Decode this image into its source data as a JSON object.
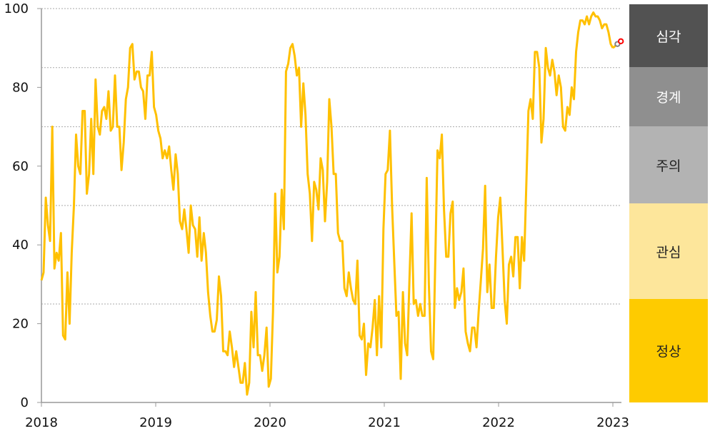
{
  "chart_data": {
    "type": "line",
    "title": "",
    "xlabel": "",
    "ylabel": "",
    "xlim": [
      2018,
      2023.075
    ],
    "ylim": [
      0,
      100
    ],
    "x_ticks": [
      "2018",
      "2019",
      "2020",
      "2021",
      "2022",
      "2023"
    ],
    "x_tick_values": [
      2018,
      2019,
      2020,
      2021,
      2022,
      2023
    ],
    "y_ticks": [
      "0",
      "20",
      "40",
      "60",
      "80",
      "100"
    ],
    "y_tick_values": [
      0,
      20,
      40,
      60,
      80,
      100
    ],
    "grid": "horizontal dotted at band thresholds",
    "thresholds": [
      25,
      50,
      70,
      85,
      100
    ],
    "series": [
      {
        "color": "#ffc000",
        "x_first": 2018.0,
        "x_last": 2023.0,
        "values": [
          31,
          33,
          52,
          45,
          41,
          70,
          34,
          38,
          36,
          43,
          17,
          16,
          33,
          20,
          38,
          50,
          68,
          60,
          58,
          74,
          74,
          53,
          58,
          72,
          58,
          82,
          70,
          68,
          74,
          75,
          72,
          79,
          69,
          70,
          83,
          70,
          70,
          59,
          66,
          77,
          80,
          90,
          91,
          82,
          84,
          84,
          80,
          79,
          72,
          83,
          83,
          89,
          75,
          73,
          69,
          67,
          62,
          64,
          62,
          65,
          59,
          54,
          63,
          58,
          46,
          44,
          49,
          44,
          38,
          50,
          45,
          44,
          37,
          47,
          36,
          43,
          38,
          28,
          22,
          18,
          18,
          21,
          32,
          27,
          13,
          13,
          12,
          18,
          14,
          9,
          13,
          9,
          5,
          5,
          10,
          2,
          5,
          23,
          14,
          28,
          12,
          12,
          8,
          12,
          19,
          4,
          6,
          23,
          53,
          33,
          37,
          54,
          44,
          84,
          86,
          90,
          91,
          88,
          83,
          85,
          70,
          81,
          73,
          58,
          53,
          41,
          56,
          54,
          49,
          62,
          59,
          46,
          56,
          77,
          70,
          58,
          58,
          43,
          41,
          41,
          29,
          27,
          33,
          29,
          26,
          25,
          36,
          17,
          16,
          20,
          7,
          15,
          14,
          19,
          26,
          12,
          27,
          14,
          44,
          58,
          59,
          69,
          50,
          36,
          22,
          23,
          6,
          28,
          15,
          12,
          31,
          48,
          25,
          26,
          22,
          25,
          22,
          22,
          57,
          30,
          13,
          11,
          37,
          64,
          62,
          68,
          49,
          37,
          37,
          48,
          51,
          24,
          29,
          26,
          28,
          34,
          18,
          15,
          13,
          19,
          19,
          14,
          23,
          31,
          39,
          55,
          28,
          35,
          24,
          24,
          37,
          47,
          52,
          39,
          26,
          20,
          35,
          37,
          32,
          42,
          42,
          29,
          42,
          36,
          55,
          74,
          77,
          72,
          89,
          89,
          85,
          66,
          72,
          90,
          85,
          83,
          87,
          84,
          78,
          83,
          80,
          70,
          69,
          75,
          73,
          80,
          77,
          89,
          94,
          97,
          97,
          96,
          98,
          96,
          98,
          99,
          98,
          98,
          97,
          95,
          96,
          96,
          94,
          91,
          90
        ]
      }
    ],
    "markers": [
      {
        "x": 2023.04,
        "y": 91.0,
        "color": "#808080"
      },
      {
        "x": 2023.07,
        "y": 91.7,
        "color": "#ff0000"
      }
    ],
    "legend": {
      "placement": "right",
      "bands": [
        {
          "label": "심각",
          "color": "#525252",
          "text_color": "#ffffff"
        },
        {
          "label": "경계",
          "color": "#8f8f8f",
          "text_color": "#ffffff"
        },
        {
          "label": "주의",
          "color": "#b3b3b3",
          "text_color": "#222222"
        },
        {
          "label": "관심",
          "color": "#fde69b",
          "text_color": "#222222"
        },
        {
          "label": "정상",
          "color": "#fecb00",
          "text_color": "#222222"
        }
      ]
    }
  }
}
